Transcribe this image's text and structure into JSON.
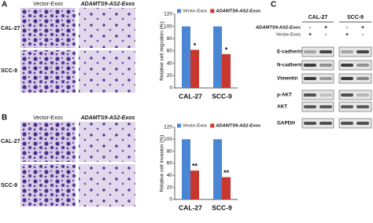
{
  "panels": {
    "a": "A",
    "b": "B",
    "c": "C"
  },
  "images": {
    "columns": [
      "Vector-Exos",
      "ADAMTS9-AS2-Exos"
    ],
    "rows": [
      "CAL-27",
      "SCC-9"
    ]
  },
  "chart_data": [
    {
      "type": "bar",
      "y_label": "Relative cell migration (%)",
      "categories": [
        "CAL-27",
        "SCC-9"
      ],
      "series": [
        {
          "name": "Vector-Exos",
          "color": "#4a86d4",
          "values": [
            100,
            100
          ]
        },
        {
          "name": "ADAMTS9-AS2-Exos",
          "color": "#c8372d",
          "values": [
            62,
            55
          ]
        }
      ],
      "annotations": [
        "*",
        "*"
      ],
      "ylim": [
        0,
        120
      ],
      "yticks": [
        0,
        20,
        40,
        60,
        80,
        100,
        120
      ]
    },
    {
      "type": "bar",
      "y_label": "Relative cell invasion (%)",
      "categories": [
        "CAL-27",
        "SCC-9"
      ],
      "series": [
        {
          "name": "Vector-Exos",
          "color": "#4a86d4",
          "values": [
            100,
            100
          ]
        },
        {
          "name": "ADAMTS9-AS2-Exos",
          "color": "#c8372d",
          "values": [
            48,
            37
          ]
        }
      ],
      "annotations": [
        "**",
        "**"
      ],
      "ylim": [
        0,
        120
      ],
      "yticks": [
        0,
        20,
        40,
        60,
        80,
        100,
        120
      ]
    }
  ],
  "blot": {
    "groups": [
      "CAL-27",
      "SCC-9"
    ],
    "conditions": [
      {
        "label": "ADAMTS9-AS2-Exos",
        "signs": [
          "-",
          "+",
          "-",
          "+"
        ]
      },
      {
        "label": "Vector-Exos",
        "signs": [
          "+",
          "-",
          "+",
          "-"
        ]
      }
    ],
    "proteins": [
      "E-cadherin",
      "N-cadherin",
      "Vimentin",
      "p-AKT",
      "AKT",
      "GAPDH"
    ]
  }
}
